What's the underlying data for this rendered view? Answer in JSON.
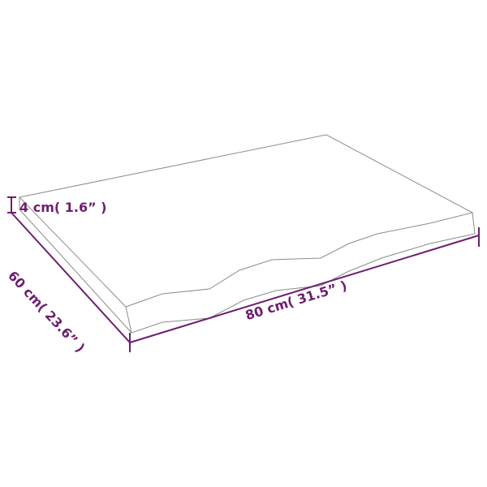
{
  "colors": {
    "dimension": "#6e1e6e",
    "outline": "#8c8c8c"
  },
  "dimensions": {
    "height": "4 cm( 1.6” )",
    "depth": "60 cm( 23.6” )",
    "width": "80 cm( 31.5” )"
  }
}
